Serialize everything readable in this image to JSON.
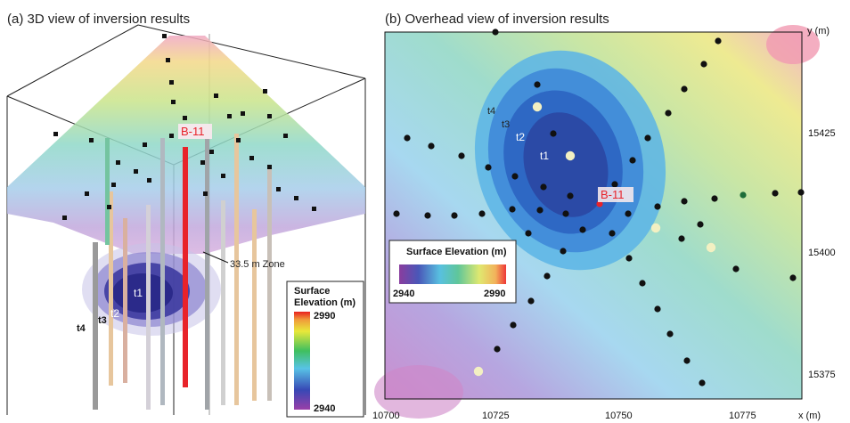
{
  "panel_a": {
    "title": "(a) 3D view of inversion results",
    "borehole_label": "B-11",
    "zone_label": "33.5 m Zone",
    "contours": [
      "t1",
      "t2",
      "t3",
      "t4"
    ],
    "legend": {
      "title_line1": "Surface",
      "title_line2": "Elevation (m)",
      "max": "2990",
      "min": "2940"
    }
  },
  "panel_b": {
    "title": "(b) Overhead view of inversion results",
    "borehole_label": "B-11",
    "contours": [
      "t1",
      "t2",
      "t3",
      "t4"
    ],
    "legend": {
      "title": "Surface Elevation (m)",
      "min": "2940",
      "max": "2990"
    },
    "x_axis": {
      "label": "x (m)",
      "ticks": [
        "10700",
        "10725",
        "10750",
        "10775"
      ]
    },
    "y_axis": {
      "label": "y (m)",
      "ticks": [
        "15425",
        "15400",
        "15375"
      ]
    }
  },
  "colors": {
    "borehole": "#e8232a",
    "low": "#7a3f9c",
    "high": "#ee3030",
    "mid": "#52c2a8"
  }
}
